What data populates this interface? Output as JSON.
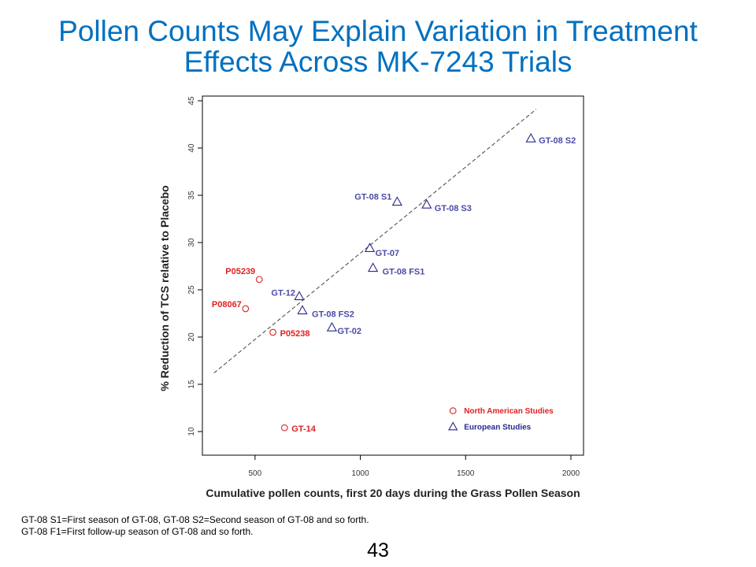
{
  "slide": {
    "title_line1": "Pollen Counts May Explain Variation in Treatment",
    "title_line2": "Effects Across MK-7243 Trials",
    "footnote_line1": "GT-08 S1=First season of GT-08, GT-08 S2=Second season of GT-08 and so forth.",
    "footnote_line2": "GT-08 F1=First follow-up season of GT-08 and so forth.",
    "page_number": "43"
  },
  "colors": {
    "title": "#0070c0",
    "north_american": "#e02020",
    "european": "#2a2a8c",
    "north_american_label": "#e02020",
    "european_label": "#4a4aa8"
  },
  "chart_data": {
    "type": "scatter",
    "title": "",
    "xlabel": "Cumulative pollen counts, first 20 days during the Grass Pollen Season",
    "ylabel": "% Reduction of TCS relative to Placebo",
    "xlim": [
      250,
      2060
    ],
    "ylim": [
      7.5,
      45.5
    ],
    "xticks": [
      500,
      1000,
      1500,
      2000
    ],
    "yticks": [
      10,
      15,
      20,
      25,
      30,
      35,
      40,
      45
    ],
    "grid": false,
    "legend_position": "bottom-right",
    "series": [
      {
        "name": "North American Studies",
        "marker": "circle",
        "points": [
          {
            "label": "P05239",
            "x": 520,
            "y": 26.1
          },
          {
            "label": "P08067",
            "x": 455,
            "y": 23.0
          },
          {
            "label": "P05238",
            "x": 585,
            "y": 20.5
          },
          {
            "label": "GT-14",
            "x": 640,
            "y": 10.4
          }
        ]
      },
      {
        "name": "European Studies",
        "marker": "triangle",
        "points": [
          {
            "label": "GT-08 S2",
            "x": 1810,
            "y": 41.0
          },
          {
            "label": "GT-08 S1",
            "x": 1175,
            "y": 34.3
          },
          {
            "label": "GT-08 S3",
            "x": 1315,
            "y": 34.0
          },
          {
            "label": "GT-07",
            "x": 1045,
            "y": 29.4
          },
          {
            "label": "GT-08 FS1",
            "x": 1060,
            "y": 27.3
          },
          {
            "label": "GT-12",
            "x": 710,
            "y": 24.3
          },
          {
            "label": "GT-08 FS2",
            "x": 725,
            "y": 22.8
          },
          {
            "label": "GT-02",
            "x": 865,
            "y": 21.0
          }
        ]
      }
    ],
    "fit_line": {
      "x": [
        305,
        1835
      ],
      "y": [
        16.2,
        44.1
      ]
    }
  }
}
